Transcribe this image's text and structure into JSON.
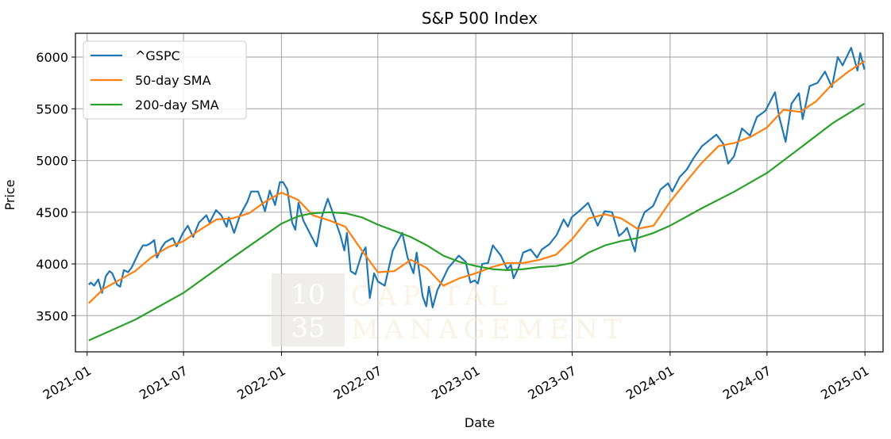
{
  "chart_data": {
    "type": "line",
    "title": "S&P 500 Index",
    "xlabel": "Date",
    "ylabel": "Price",
    "xlim": [
      "2020-12-10",
      "2025-02-04"
    ],
    "ylim": [
      3150,
      6230
    ],
    "x_ticks": [
      "2021-01",
      "2021-07",
      "2022-01",
      "2022-07",
      "2023-01",
      "2023-07",
      "2024-01",
      "2024-07",
      "2025-01"
    ],
    "y_ticks": [
      3500,
      4000,
      4500,
      5000,
      5500,
      6000
    ],
    "grid": true,
    "legend_position": "top-left",
    "series": [
      {
        "name": "^GSPC",
        "color": "#1f77b4",
        "points": [
          [
            "2021-01-04",
            3800
          ],
          [
            "2021-01-08",
            3820
          ],
          [
            "2021-01-14",
            3790
          ],
          [
            "2021-01-22",
            3850
          ],
          [
            "2021-01-29",
            3720
          ],
          [
            "2021-02-05",
            3880
          ],
          [
            "2021-02-12",
            3930
          ],
          [
            "2021-02-17",
            3910
          ],
          [
            "2021-02-26",
            3800
          ],
          [
            "2021-03-04",
            3780
          ],
          [
            "2021-03-11",
            3940
          ],
          [
            "2021-03-19",
            3920
          ],
          [
            "2021-03-26",
            3970
          ],
          [
            "2021-04-09",
            4120
          ],
          [
            "2021-04-16",
            4180
          ],
          [
            "2021-04-23",
            4180
          ],
          [
            "2021-04-30",
            4200
          ],
          [
            "2021-05-07",
            4230
          ],
          [
            "2021-05-12",
            4060
          ],
          [
            "2021-05-21",
            4160
          ],
          [
            "2021-05-28",
            4210
          ],
          [
            "2021-06-11",
            4250
          ],
          [
            "2021-06-18",
            4170
          ],
          [
            "2021-06-30",
            4300
          ],
          [
            "2021-07-09",
            4370
          ],
          [
            "2021-07-19",
            4260
          ],
          [
            "2021-07-30",
            4400
          ],
          [
            "2021-08-13",
            4470
          ],
          [
            "2021-08-19",
            4400
          ],
          [
            "2021-08-31",
            4520
          ],
          [
            "2021-09-10",
            4470
          ],
          [
            "2021-09-20",
            4360
          ],
          [
            "2021-09-24",
            4450
          ],
          [
            "2021-10-04",
            4300
          ],
          [
            "2021-10-15",
            4470
          ],
          [
            "2021-10-29",
            4600
          ],
          [
            "2021-11-05",
            4700
          ],
          [
            "2021-11-18",
            4700
          ],
          [
            "2021-11-26",
            4590
          ],
          [
            "2021-12-01",
            4510
          ],
          [
            "2021-12-10",
            4710
          ],
          [
            "2021-12-20",
            4570
          ],
          [
            "2021-12-29",
            4790
          ],
          [
            "2022-01-04",
            4790
          ],
          [
            "2022-01-12",
            4720
          ],
          [
            "2022-01-21",
            4400
          ],
          [
            "2022-01-27",
            4330
          ],
          [
            "2022-02-02",
            4590
          ],
          [
            "2022-02-11",
            4420
          ],
          [
            "2022-02-18",
            4350
          ],
          [
            "2022-02-24",
            4290
          ],
          [
            "2022-03-08",
            4170
          ],
          [
            "2022-03-18",
            4460
          ],
          [
            "2022-03-29",
            4630
          ],
          [
            "2022-04-07",
            4500
          ],
          [
            "2022-04-14",
            4390
          ],
          [
            "2022-04-22",
            4270
          ],
          [
            "2022-04-29",
            4130
          ],
          [
            "2022-05-04",
            4300
          ],
          [
            "2022-05-11",
            3930
          ],
          [
            "2022-05-20",
            3900
          ],
          [
            "2022-06-01",
            4100
          ],
          [
            "2022-06-08",
            4160
          ],
          [
            "2022-06-16",
            3670
          ],
          [
            "2022-06-24",
            3910
          ],
          [
            "2022-07-01",
            3830
          ],
          [
            "2022-07-14",
            3790
          ],
          [
            "2022-07-29",
            4130
          ],
          [
            "2022-08-16",
            4300
          ],
          [
            "2022-08-26",
            4060
          ],
          [
            "2022-09-06",
            3910
          ],
          [
            "2022-09-12",
            4110
          ],
          [
            "2022-09-23",
            3690
          ],
          [
            "2022-09-30",
            3590
          ],
          [
            "2022-10-05",
            3780
          ],
          [
            "2022-10-12",
            3580
          ],
          [
            "2022-10-21",
            3750
          ],
          [
            "2022-11-01",
            3860
          ],
          [
            "2022-11-10",
            3960
          ],
          [
            "2022-11-30",
            4080
          ],
          [
            "2022-12-13",
            4020
          ],
          [
            "2022-12-22",
            3820
          ],
          [
            "2022-12-30",
            3840
          ],
          [
            "2023-01-05",
            3810
          ],
          [
            "2023-01-13",
            4000
          ],
          [
            "2023-01-24",
            4010
          ],
          [
            "2023-02-02",
            4180
          ],
          [
            "2023-02-17",
            4080
          ],
          [
            "2023-03-01",
            3950
          ],
          [
            "2023-03-08",
            3990
          ],
          [
            "2023-03-13",
            3860
          ],
          [
            "2023-03-22",
            3960
          ],
          [
            "2023-03-31",
            4110
          ],
          [
            "2023-04-14",
            4140
          ],
          [
            "2023-04-26",
            4060
          ],
          [
            "2023-05-05",
            4140
          ],
          [
            "2023-05-19",
            4190
          ],
          [
            "2023-06-02",
            4280
          ],
          [
            "2023-06-15",
            4430
          ],
          [
            "2023-06-23",
            4360
          ],
          [
            "2023-06-30",
            4450
          ],
          [
            "2023-07-14",
            4510
          ],
          [
            "2023-07-31",
            4590
          ],
          [
            "2023-08-10",
            4470
          ],
          [
            "2023-08-18",
            4370
          ],
          [
            "2023-08-31",
            4510
          ],
          [
            "2023-09-14",
            4500
          ],
          [
            "2023-09-27",
            4270
          ],
          [
            "2023-10-06",
            4310
          ],
          [
            "2023-10-12",
            4350
          ],
          [
            "2023-10-27",
            4120
          ],
          [
            "2023-11-03",
            4360
          ],
          [
            "2023-11-14",
            4500
          ],
          [
            "2023-11-30",
            4560
          ],
          [
            "2023-12-14",
            4720
          ],
          [
            "2023-12-28",
            4780
          ],
          [
            "2024-01-05",
            4700
          ],
          [
            "2024-01-19",
            4840
          ],
          [
            "2024-02-01",
            4910
          ],
          [
            "2024-02-15",
            5030
          ],
          [
            "2024-03-01",
            5140
          ],
          [
            "2024-03-28",
            5250
          ],
          [
            "2024-04-10",
            5160
          ],
          [
            "2024-04-19",
            4970
          ],
          [
            "2024-04-30",
            5040
          ],
          [
            "2024-05-15",
            5310
          ],
          [
            "2024-05-30",
            5240
          ],
          [
            "2024-06-12",
            5420
          ],
          [
            "2024-06-28",
            5480
          ],
          [
            "2024-07-16",
            5660
          ],
          [
            "2024-07-24",
            5420
          ],
          [
            "2024-08-05",
            5180
          ],
          [
            "2024-08-16",
            5550
          ],
          [
            "2024-08-30",
            5650
          ],
          [
            "2024-09-06",
            5400
          ],
          [
            "2024-09-19",
            5720
          ],
          [
            "2024-10-04",
            5750
          ],
          [
            "2024-10-18",
            5860
          ],
          [
            "2024-10-31",
            5710
          ],
          [
            "2024-11-11",
            6000
          ],
          [
            "2024-11-20",
            5920
          ],
          [
            "2024-12-06",
            6090
          ],
          [
            "2024-12-18",
            5870
          ],
          [
            "2024-12-23",
            6040
          ],
          [
            "2024-12-31",
            5880
          ]
        ]
      },
      {
        "name": "50-day SMA",
        "color": "#ff7f0e",
        "points": [
          [
            "2021-01-04",
            3620
          ],
          [
            "2021-02-01",
            3760
          ],
          [
            "2021-03-01",
            3840
          ],
          [
            "2021-04-01",
            3930
          ],
          [
            "2021-05-01",
            4060
          ],
          [
            "2021-06-01",
            4160
          ],
          [
            "2021-07-01",
            4220
          ],
          [
            "2021-08-01",
            4330
          ],
          [
            "2021-09-01",
            4430
          ],
          [
            "2021-10-01",
            4440
          ],
          [
            "2021-11-01",
            4490
          ],
          [
            "2021-12-01",
            4600
          ],
          [
            "2022-01-01",
            4690
          ],
          [
            "2022-02-01",
            4620
          ],
          [
            "2022-03-01",
            4470
          ],
          [
            "2022-04-01",
            4420
          ],
          [
            "2022-05-01",
            4360
          ],
          [
            "2022-06-01",
            4130
          ],
          [
            "2022-07-01",
            3920
          ],
          [
            "2022-08-01",
            3930
          ],
          [
            "2022-09-01",
            4040
          ],
          [
            "2022-10-01",
            3960
          ],
          [
            "2022-11-01",
            3790
          ],
          [
            "2022-12-01",
            3860
          ],
          [
            "2023-01-01",
            3910
          ],
          [
            "2023-02-01",
            3970
          ],
          [
            "2023-03-01",
            4010
          ],
          [
            "2023-04-01",
            4010
          ],
          [
            "2023-05-01",
            4040
          ],
          [
            "2023-06-01",
            4090
          ],
          [
            "2023-07-01",
            4240
          ],
          [
            "2023-08-01",
            4440
          ],
          [
            "2023-09-01",
            4480
          ],
          [
            "2023-10-01",
            4440
          ],
          [
            "2023-11-01",
            4340
          ],
          [
            "2023-12-01",
            4370
          ],
          [
            "2024-01-01",
            4600
          ],
          [
            "2024-02-01",
            4800
          ],
          [
            "2024-03-01",
            4980
          ],
          [
            "2024-04-01",
            5140
          ],
          [
            "2024-05-01",
            5170
          ],
          [
            "2024-06-01",
            5230
          ],
          [
            "2024-07-01",
            5320
          ],
          [
            "2024-08-01",
            5490
          ],
          [
            "2024-09-01",
            5470
          ],
          [
            "2024-10-01",
            5570
          ],
          [
            "2024-11-01",
            5740
          ],
          [
            "2024-12-01",
            5860
          ],
          [
            "2024-12-31",
            5960
          ]
        ]
      },
      {
        "name": "200-day SMA",
        "color": "#2ca02c",
        "points": [
          [
            "2021-01-04",
            3260
          ],
          [
            "2021-04-01",
            3460
          ],
          [
            "2021-07-01",
            3720
          ],
          [
            "2021-10-01",
            4060
          ],
          [
            "2022-01-01",
            4390
          ],
          [
            "2022-02-01",
            4460
          ],
          [
            "2022-03-01",
            4490
          ],
          [
            "2022-04-01",
            4500
          ],
          [
            "2022-05-01",
            4490
          ],
          [
            "2022-06-01",
            4450
          ],
          [
            "2022-07-01",
            4380
          ],
          [
            "2022-08-01",
            4320
          ],
          [
            "2022-09-01",
            4260
          ],
          [
            "2022-10-01",
            4180
          ],
          [
            "2022-11-01",
            4080
          ],
          [
            "2022-12-01",
            4020
          ],
          [
            "2023-01-01",
            3980
          ],
          [
            "2023-02-01",
            3950
          ],
          [
            "2023-03-01",
            3940
          ],
          [
            "2023-04-01",
            3950
          ],
          [
            "2023-05-01",
            3970
          ],
          [
            "2023-06-01",
            3980
          ],
          [
            "2023-07-01",
            4010
          ],
          [
            "2023-08-01",
            4110
          ],
          [
            "2023-09-01",
            4180
          ],
          [
            "2023-10-01",
            4220
          ],
          [
            "2023-11-01",
            4250
          ],
          [
            "2023-12-01",
            4300
          ],
          [
            "2024-01-01",
            4370
          ],
          [
            "2024-03-01",
            4540
          ],
          [
            "2024-05-01",
            4700
          ],
          [
            "2024-07-01",
            4880
          ],
          [
            "2024-09-01",
            5120
          ],
          [
            "2024-11-01",
            5360
          ],
          [
            "2024-12-31",
            5550
          ]
        ]
      }
    ]
  },
  "watermark": {
    "digits_top": "10",
    "digits_bottom": "35",
    "word_top": "CAPITAL",
    "word_bottom": "MANAGEMENT"
  }
}
